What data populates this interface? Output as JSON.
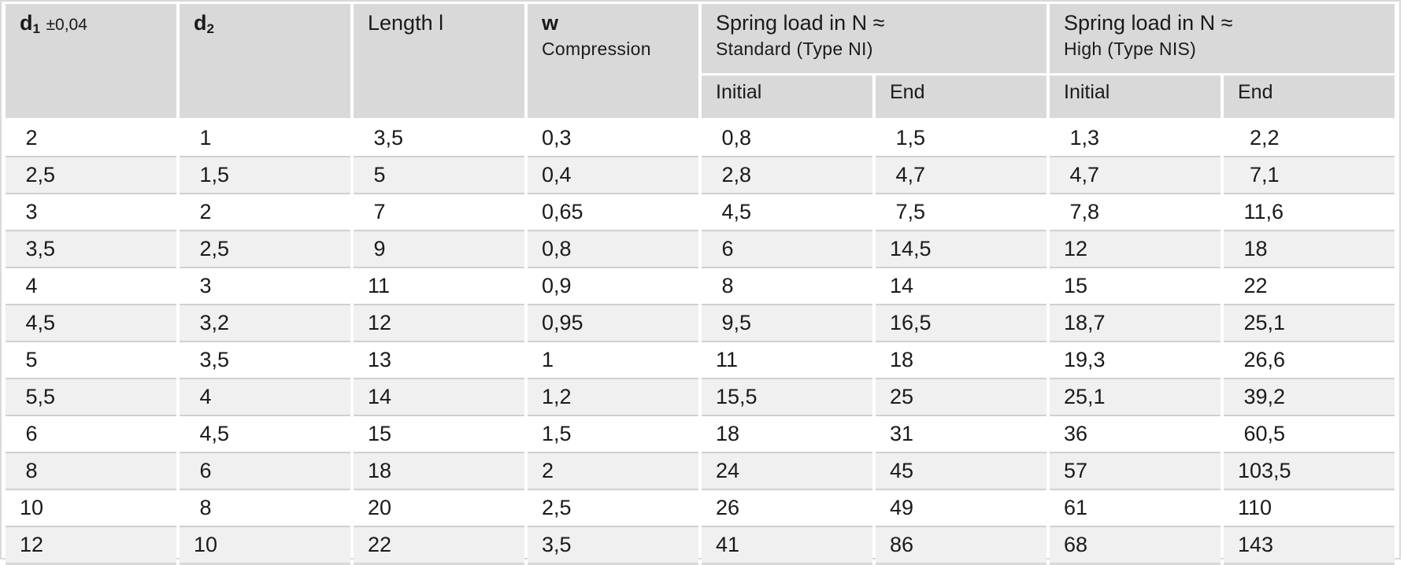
{
  "header": {
    "d1": {
      "symbol": "d",
      "sub": "1",
      "tolerance": "±0,04"
    },
    "d2": {
      "symbol": "d",
      "sub": "2"
    },
    "length": "Length l",
    "w": {
      "symbol": "w",
      "sub_label": "Compression"
    },
    "standard": {
      "title": "Spring load in N ≈",
      "sub_label": "Standard (Type NI)",
      "initial": "Initial",
      "end": "End"
    },
    "high": {
      "title": "Spring load in N ≈",
      "sub_label": "High (Type NIS)",
      "initial": "Initial",
      "end": "End"
    }
  },
  "rows": [
    [
      " 2",
      " 1",
      " 3,5",
      "0,3",
      " 0,8",
      " 1,5",
      " 1,3",
      "  2,2"
    ],
    [
      " 2,5",
      " 1,5",
      " 5",
      "0,4",
      " 2,8",
      " 4,7",
      " 4,7",
      "  7,1"
    ],
    [
      " 3",
      " 2",
      " 7",
      "0,65",
      " 4,5",
      " 7,5",
      " 7,8",
      " 11,6"
    ],
    [
      " 3,5",
      " 2,5",
      " 9",
      "0,8",
      " 6",
      "14,5",
      "12",
      " 18"
    ],
    [
      " 4",
      " 3",
      "11",
      "0,9",
      " 8",
      "14",
      "15",
      " 22"
    ],
    [
      " 4,5",
      " 3,2",
      "12",
      "0,95",
      " 9,5",
      "16,5",
      "18,7",
      " 25,1"
    ],
    [
      " 5",
      " 3,5",
      "13",
      "1",
      "11",
      "18",
      "19,3",
      " 26,6"
    ],
    [
      " 5,5",
      " 4",
      "14",
      "1,2",
      "15,5",
      "25",
      "25,1",
      " 39,2"
    ],
    [
      " 6",
      " 4,5",
      "15",
      "1,5",
      "18",
      "31",
      "36",
      " 60,5"
    ],
    [
      " 8",
      " 6",
      "18",
      "2",
      "24",
      "45",
      "57",
      "103,5"
    ],
    [
      "10",
      " 8",
      "20",
      "2,5",
      "26",
      "49",
      "61",
      "110"
    ],
    [
      "12",
      "10",
      "22",
      "3,5",
      "41",
      "86",
      "68",
      "143"
    ]
  ]
}
